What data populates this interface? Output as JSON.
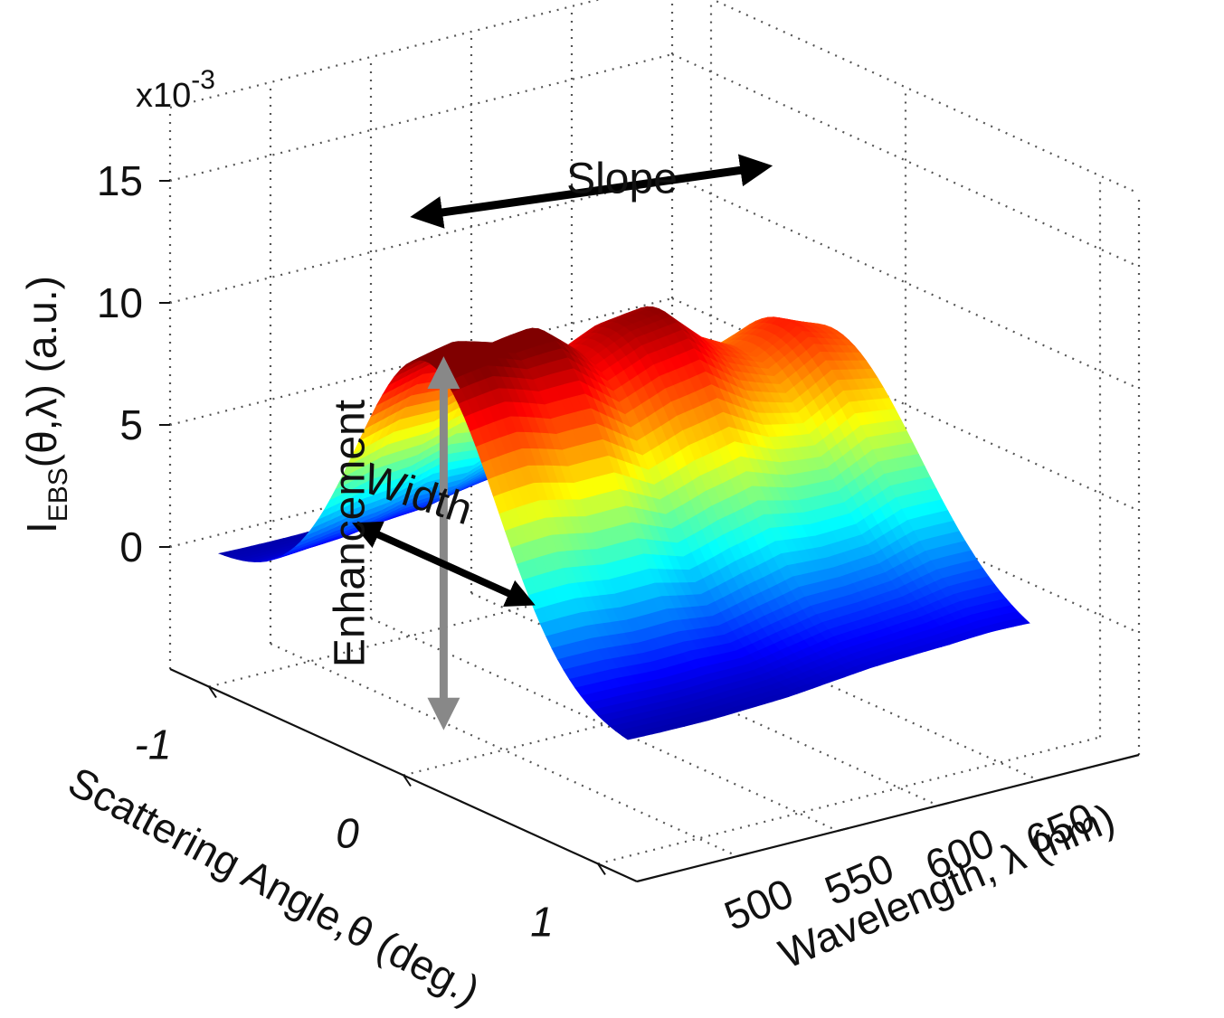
{
  "chart_data": {
    "type": "surface3d",
    "title": "",
    "zlabel": {
      "main": "I",
      "sub": "EBS",
      "rest": "(θ,λ) (a.u.)"
    },
    "xlabel": "Scattering Angle,θ (deg.)",
    "ylabel": "Wavelength, λ (nm)",
    "z_multiplier": {
      "base": "x10",
      "exp": "-3"
    },
    "z_ticks": [
      {
        "value": 0,
        "label": "0"
      },
      {
        "value": 5,
        "label": "5"
      },
      {
        "value": 10,
        "label": "10"
      },
      {
        "value": 15,
        "label": "15"
      }
    ],
    "x_ticks": [
      {
        "value": -1,
        "label": "-1"
      },
      {
        "value": 0,
        "label": "0"
      },
      {
        "value": 1,
        "label": "1"
      }
    ],
    "y_ticks": [
      {
        "value": 500,
        "label": "500"
      },
      {
        "value": 550,
        "label": "550"
      },
      {
        "value": 600,
        "label": "600"
      },
      {
        "value": 650,
        "label": "650"
      }
    ],
    "xlim": [
      -1.2,
      1.2
    ],
    "ylim": [
      450,
      700
    ],
    "zlim": [
      -5,
      18
    ],
    "grid": true,
    "colormap": "jet",
    "peak_profile": {
      "description": "peak height (x10^-3 a.u.) at θ=0 across wavelength",
      "wavelength": [
        460,
        480,
        500,
        520,
        540,
        560,
        580,
        600,
        620,
        640,
        660
      ],
      "peak": [
        11.5,
        11.6,
        11.0,
        11.2,
        10.0,
        11.0,
        11.5,
        10.2,
        9.5,
        10.3,
        9.5
      ]
    },
    "annotations": [
      {
        "label": "Slope"
      },
      {
        "label": "Enhancement"
      },
      {
        "label": "Width"
      }
    ]
  }
}
